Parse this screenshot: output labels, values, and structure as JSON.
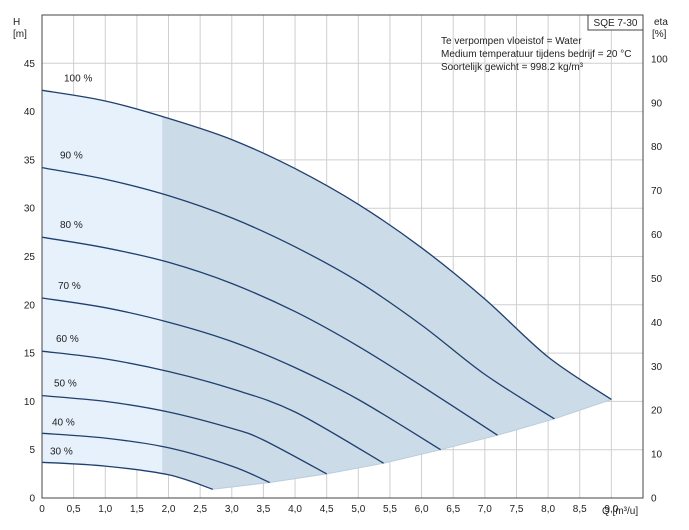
{
  "chart_data": {
    "type": "line",
    "title": "SQE 7-30",
    "y_axis": {
      "label": "H",
      "unit": "[m]",
      "range": [
        0,
        50
      ],
      "ticks": [
        0,
        5,
        10,
        15,
        20,
        25,
        30,
        35,
        40,
        45
      ]
    },
    "y2_axis": {
      "label": "eta",
      "unit": "[%]",
      "range": [
        0,
        110
      ],
      "ticks": [
        0,
        10,
        20,
        30,
        40,
        50,
        60,
        70,
        80,
        90,
        100
      ]
    },
    "x_axis": {
      "label": "Q [m³/u]",
      "range": [
        0,
        9.5
      ],
      "ticks": [
        "0",
        "0,5",
        "1,0",
        "1,5",
        "2,0",
        "2,5",
        "3,0",
        "3,5",
        "4,0",
        "4,5",
        "5,0",
        "5,5",
        "6,0",
        "6,5",
        "7,0",
        "7,5",
        "8,0",
        "8,5",
        "9,0",
        "9,5"
      ]
    },
    "notes": [
      "Te verpompen vloeistof = Water",
      "Medium temperatuur tijdens bedrijf = 20 °C",
      "Soortelijk gewicht = 998.2 kg/m³"
    ],
    "grid": true,
    "series": [
      {
        "name": "100 %",
        "x": [
          0,
          1,
          2,
          3,
          4,
          5,
          6,
          7,
          8,
          9.0
        ],
        "y": [
          42.2,
          41.1,
          39.3,
          37.1,
          34.1,
          30.4,
          25.9,
          20.6,
          14.6,
          10.2
        ]
      },
      {
        "name": "90 %",
        "x": [
          0,
          1,
          2,
          3,
          4,
          5,
          6,
          7,
          8.1
        ],
        "y": [
          34.2,
          33.0,
          31.3,
          29.0,
          26.0,
          22.4,
          17.9,
          12.8,
          8.2
        ]
      },
      {
        "name": "80 %",
        "x": [
          0,
          1,
          2,
          3,
          4,
          5,
          6,
          7.2
        ],
        "y": [
          27.0,
          25.9,
          24.4,
          22.2,
          19.3,
          15.7,
          11.6,
          6.5
        ]
      },
      {
        "name": "70 %",
        "x": [
          0,
          1,
          2,
          3,
          4,
          5,
          6.3
        ],
        "y": [
          20.7,
          19.7,
          18.2,
          16.2,
          13.5,
          10.2,
          5.0
        ]
      },
      {
        "name": "60 %",
        "x": [
          0,
          1,
          2,
          3,
          4,
          5.4
        ],
        "y": [
          15.2,
          14.4,
          13.1,
          11.3,
          8.9,
          3.6
        ]
      },
      {
        "name": "50 %",
        "x": [
          0,
          1,
          2,
          3,
          3.5,
          4.5
        ],
        "y": [
          10.6,
          10.0,
          8.9,
          7.2,
          6.0,
          2.5
        ]
      },
      {
        "name": "40 %",
        "x": [
          0,
          1,
          2,
          3,
          3.6
        ],
        "y": [
          6.7,
          6.2,
          5.2,
          3.3,
          1.6
        ]
      },
      {
        "name": "30 %",
        "x": [
          0,
          1,
          2,
          2.7
        ],
        "y": [
          3.7,
          3.3,
          2.4,
          0.9
        ]
      }
    ],
    "operating_area_lower_bound": {
      "x": [
        2.7,
        3.6,
        4.5,
        5.4,
        6.3,
        7.2,
        8.1,
        9.0
      ],
      "y": [
        0.9,
        1.6,
        2.5,
        3.6,
        5.0,
        6.5,
        8.2,
        10.2
      ]
    },
    "light_region_x_max": 1.9
  }
}
